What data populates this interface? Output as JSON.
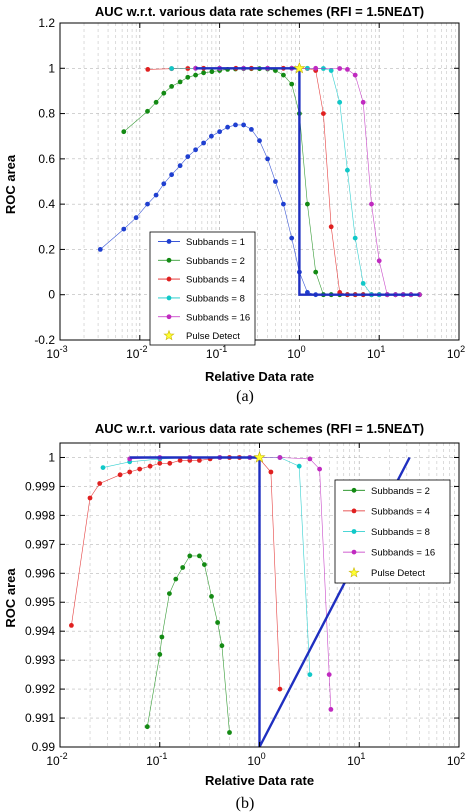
{
  "captions": [
    "(a)",
    "(b)"
  ],
  "chart_data": [
    {
      "type": "line",
      "title": "AUC w.r.t. various data rate schemes (RFI = 1.5NEΔT)",
      "xlabel": "Relative Data rate",
      "ylabel": "ROC area",
      "xscale": "log",
      "xlim": [
        0.001,
        100
      ],
      "ylim": [
        -0.2,
        1.2
      ],
      "x_ticks": [
        0.001,
        0.01,
        0.1,
        1,
        10,
        100
      ],
      "x_tick_labels": [
        {
          "base": "10",
          "exp": "-3"
        },
        {
          "base": "10",
          "exp": "-2"
        },
        {
          "base": "10",
          "exp": "-1"
        },
        {
          "base": "10",
          "exp": "0"
        },
        {
          "base": "10",
          "exp": "1"
        },
        {
          "base": "10",
          "exp": "2"
        }
      ],
      "y_ticks": [
        -0.2,
        0,
        0.2,
        0.4,
        0.6,
        0.8,
        1,
        1.2
      ],
      "y_tick_labels": [
        "-0.2",
        "0",
        "0.2",
        "0.4",
        "0.6",
        "0.8",
        "1",
        "1.2"
      ],
      "grid": true,
      "legend_position": "lower-left",
      "series": [
        {
          "name": "Subbands = 1",
          "color": "#1f3fd0",
          "marker": "dot",
          "x": [
            0.0032,
            0.0063,
            0.009,
            0.0125,
            0.016,
            0.02,
            0.025,
            0.032,
            0.04,
            0.05,
            0.063,
            0.079,
            0.1,
            0.126,
            0.158,
            0.2,
            0.25,
            0.316,
            0.4,
            0.5,
            0.63,
            0.8,
            1.0,
            1.26,
            1.6,
            2.0,
            2.5,
            3.2,
            4.0,
            5.0,
            6.3,
            8.0,
            10,
            12.6,
            16,
            20,
            25,
            32
          ],
          "y": [
            0.2,
            0.29,
            0.34,
            0.4,
            0.44,
            0.49,
            0.53,
            0.57,
            0.61,
            0.64,
            0.67,
            0.7,
            0.72,
            0.74,
            0.75,
            0.75,
            0.73,
            0.68,
            0.6,
            0.5,
            0.4,
            0.25,
            0.1,
            0.01,
            0.0,
            0.0,
            0.0,
            0.0,
            0.0,
            0.0,
            0.0,
            0.0,
            0.0,
            0.0,
            0.0,
            0.0,
            0.0,
            0.0
          ]
        },
        {
          "name": "Subbands = 2",
          "color": "#138a13",
          "marker": "dot",
          "x": [
            0.0063,
            0.0125,
            0.016,
            0.02,
            0.025,
            0.032,
            0.04,
            0.05,
            0.063,
            0.08,
            0.1,
            0.126,
            0.158,
            0.2,
            0.25,
            0.316,
            0.4,
            0.5,
            0.63,
            0.8,
            1.0,
            1.26,
            1.6,
            2.0,
            2.5,
            3.2,
            4.0,
            5.0,
            6.3,
            8.0,
            10,
            12.6,
            16,
            20,
            25,
            32
          ],
          "y": [
            0.72,
            0.81,
            0.85,
            0.89,
            0.92,
            0.94,
            0.96,
            0.97,
            0.98,
            0.985,
            0.99,
            0.995,
            0.997,
            0.998,
            0.998,
            0.998,
            0.997,
            0.99,
            0.97,
            0.93,
            0.8,
            0.4,
            0.1,
            0.0,
            0.0,
            0.0,
            0.0,
            0.0,
            0.0,
            0.0,
            0.0,
            0.0,
            0.0,
            0.0,
            0.0,
            0.0
          ]
        },
        {
          "name": "Subbands = 4",
          "color": "#e02020",
          "marker": "dot",
          "x": [
            0.0126,
            0.025,
            0.04,
            0.063,
            0.1,
            0.16,
            0.25,
            0.4,
            0.63,
            1.0,
            1.26,
            1.6,
            2.0,
            2.5,
            3.2,
            4.0,
            5.0,
            6.3,
            8.0,
            10,
            12.6,
            16,
            20,
            25,
            32
          ],
          "y": [
            0.995,
            0.998,
            0.999,
            1.0,
            1.0,
            1.0,
            1.0,
            1.0,
            1.0,
            1.0,
            0.999,
            0.99,
            0.8,
            0.3,
            0.01,
            0.0,
            0.0,
            0.0,
            0.0,
            0.0,
            0.0,
            0.0,
            0.0,
            0.0,
            0.0
          ]
        },
        {
          "name": "Subbands = 8",
          "color": "#10c8c8",
          "marker": "dot",
          "x": [
            0.025,
            0.05,
            0.1,
            0.2,
            0.4,
            0.8,
            1.26,
            2.0,
            2.5,
            3.2,
            4.0,
            5.0,
            6.3,
            8.0,
            10,
            12.6,
            16,
            20,
            25,
            32
          ],
          "y": [
            0.999,
            1.0,
            1.0,
            1.0,
            1.0,
            1.0,
            1.0,
            0.999,
            0.99,
            0.85,
            0.55,
            0.25,
            0.05,
            0.0,
            0.0,
            0.0,
            0.0,
            0.0,
            0.0,
            0.0
          ]
        },
        {
          "name": "Subbands = 16",
          "color": "#c02ac0",
          "marker": "dot",
          "x": [
            0.05,
            0.1,
            0.2,
            0.4,
            0.8,
            1.6,
            3.2,
            4.0,
            5.0,
            6.3,
            8.0,
            10,
            12.6,
            16,
            20,
            25,
            32
          ],
          "y": [
            1.0,
            1.0,
            1.0,
            1.0,
            1.0,
            1.0,
            0.999,
            0.995,
            0.97,
            0.85,
            0.4,
            0.15,
            0.0,
            0.0,
            0.0,
            0.0,
            0.0
          ]
        },
        {
          "name": "Pulse Detect",
          "color": "#1f2fc0",
          "marker": "star",
          "marker_color": "#ffff33",
          "x": [
            0.05,
            1,
            1,
            32
          ],
          "y": [
            1,
            1,
            0,
            0
          ]
        }
      ]
    },
    {
      "type": "line",
      "title": "AUC w.r.t. various data rate schemes (RFI = 1.5NEΔT)",
      "xlabel": "Relative Data rate",
      "ylabel": "ROC area",
      "xscale": "log",
      "xlim": [
        0.01,
        100
      ],
      "ylim": [
        0.99,
        1.0005
      ],
      "x_ticks": [
        0.01,
        0.1,
        1,
        10,
        100
      ],
      "x_tick_labels": [
        {
          "base": "10",
          "exp": "-2"
        },
        {
          "base": "10",
          "exp": "-1"
        },
        {
          "base": "10",
          "exp": "0"
        },
        {
          "base": "10",
          "exp": "1"
        },
        {
          "base": "10",
          "exp": "2"
        }
      ],
      "y_ticks": [
        0.99,
        0.991,
        0.992,
        0.993,
        0.994,
        0.995,
        0.996,
        0.997,
        0.998,
        0.999,
        1
      ],
      "y_tick_labels": [
        "0.99",
        "0.991",
        "0.992",
        "0.993",
        "0.994",
        "0.995",
        "0.996",
        "0.997",
        "0.998",
        "0.999",
        "1"
      ],
      "grid": true,
      "legend_position": "top-right",
      "series": [
        {
          "name": "Subbands = 2",
          "color": "#138a13",
          "marker": "dot",
          "x": [
            0.075,
            0.1,
            0.105,
            0.125,
            0.145,
            0.17,
            0.2,
            0.25,
            0.28,
            0.33,
            0.38,
            0.42,
            0.5
          ],
          "y": [
            0.9907,
            0.9932,
            0.9938,
            0.9953,
            0.9958,
            0.9962,
            0.9966,
            0.9966,
            0.9963,
            0.9952,
            0.9943,
            0.9935,
            0.9905
          ]
        },
        {
          "name": "Subbands = 4",
          "color": "#e02020",
          "marker": "dot",
          "x": [
            0.013,
            0.02,
            0.025,
            0.04,
            0.05,
            0.063,
            0.08,
            0.1,
            0.126,
            0.16,
            0.2,
            0.25,
            0.32,
            0.4,
            0.5,
            0.63,
            0.8,
            1.0,
            1.3,
            1.6
          ],
          "y": [
            0.9942,
            0.9986,
            0.9991,
            0.9994,
            0.9995,
            0.9996,
            0.9997,
            0.9998,
            0.9998,
            0.9999,
            0.9999,
            0.9999,
            0.99995,
            1.0,
            1.0,
            1.0,
            1.0,
            0.99995,
            0.9995,
            0.992
          ]
        },
        {
          "name": "Subbands = 8",
          "color": "#10c8c8",
          "marker": "dot",
          "x": [
            0.027,
            0.05,
            0.1,
            0.2,
            0.4,
            0.8,
            1.6,
            2.5,
            3.2
          ],
          "y": [
            0.99965,
            0.99985,
            0.99995,
            1.0,
            1.0,
            1.0,
            1.0,
            0.9997,
            0.9925
          ]
        },
        {
          "name": "Subbands = 16",
          "color": "#c02ac0",
          "marker": "dot",
          "x": [
            0.05,
            0.1,
            0.2,
            0.4,
            0.8,
            1.6,
            3.2,
            4.0,
            5.0,
            5.2
          ],
          "y": [
            0.99995,
            1.0,
            1.0,
            1.0,
            1.0,
            1.0,
            0.99995,
            0.9996,
            0.9925,
            0.9913
          ]
        },
        {
          "name": "Pulse Detect",
          "color": "#1f2fc0",
          "marker": "star",
          "marker_color": "#ffff33",
          "x": [
            0.05,
            1,
            1,
            32
          ],
          "y": [
            1,
            1,
            0.99,
            1
          ]
        }
      ]
    }
  ]
}
